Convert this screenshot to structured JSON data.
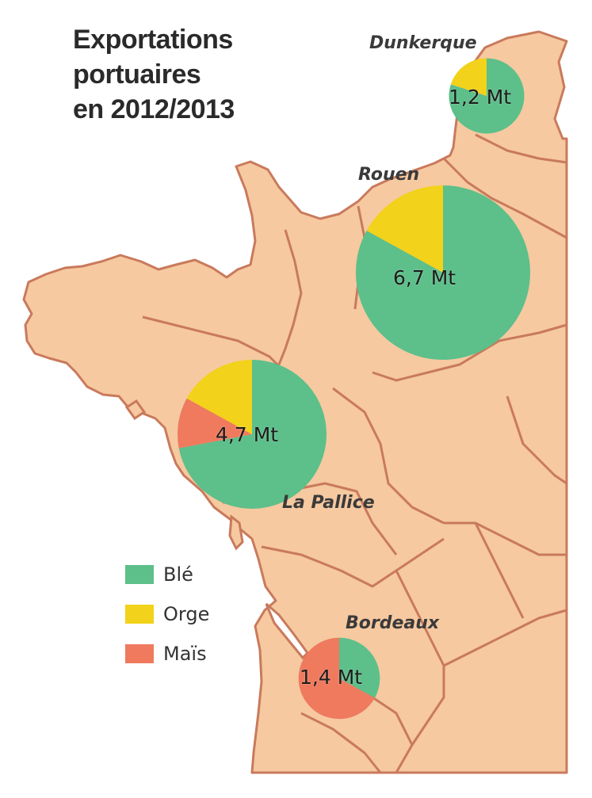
{
  "title": {
    "lines": [
      "Exportations",
      "portuaires",
      "en 2012/2013"
    ]
  },
  "colors": {
    "land": "#f6c9a0",
    "border": "#c97a5c",
    "ble": "#5dbf8a",
    "orge": "#f2d21a",
    "mais": "#ef7a5e"
  },
  "legend": {
    "items": [
      {
        "key": "ble",
        "label": "Blé",
        "color": "#5dbf8a"
      },
      {
        "key": "orge",
        "label": "Orge",
        "color": "#f2d21a"
      },
      {
        "key": "mais",
        "label": "Maïs",
        "color": "#ef7a5e"
      }
    ]
  },
  "ports": [
    {
      "name": "Dunkerque",
      "total_label": "1,2 Mt",
      "total_mt": 1.2,
      "shares": {
        "ble": 0.8,
        "orge": 0.2,
        "mais": 0.0
      }
    },
    {
      "name": "Rouen",
      "total_label": "6,7 Mt",
      "total_mt": 6.7,
      "shares": {
        "ble": 0.83,
        "orge": 0.17,
        "mais": 0.0
      }
    },
    {
      "name": "La Pallice",
      "total_label": "4,7 Mt",
      "total_mt": 4.7,
      "shares": {
        "ble": 0.72,
        "orge": 0.17,
        "mais": 0.11
      }
    },
    {
      "name": "Bordeaux",
      "total_label": "1,4 Mt",
      "total_mt": 1.4,
      "shares": {
        "ble": 0.33,
        "orge": 0.0,
        "mais": 0.67
      }
    }
  ]
}
